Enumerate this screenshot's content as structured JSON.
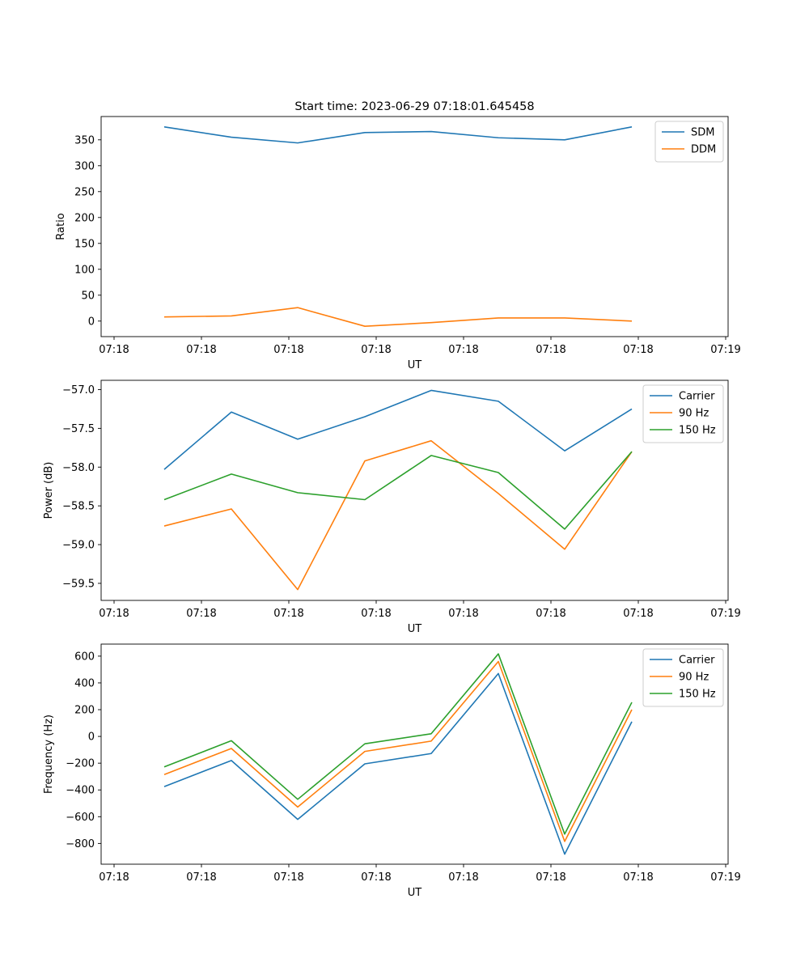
{
  "figure_title": "Start time: 2023-06-29 07:18:01.645458",
  "chart_data": [
    {
      "type": "line",
      "title": "Start time: 2023-06-29 07:18:01.645458",
      "xlabel": "UT",
      "ylabel": "Ratio",
      "x_ticks": [
        "07:18",
        "07:18",
        "07:18",
        "07:18",
        "07:18",
        "07:18",
        "07:18"
      ],
      "x_last_tick": "07:19",
      "x": [
        1,
        2,
        3,
        4,
        5,
        6,
        7,
        8
      ],
      "xlim": [
        0.2,
        9.4
      ],
      "ylim": [
        -30,
        395
      ],
      "y_ticks": [
        0,
        50,
        100,
        150,
        200,
        250,
        300,
        350
      ],
      "legend_position": "upper right",
      "series": [
        {
          "name": "SDM",
          "color": "#1f77b4",
          "values": [
            375,
            355,
            344,
            364,
            366,
            354,
            350,
            375
          ]
        },
        {
          "name": "DDM",
          "color": "#ff7f0e",
          "values": [
            8,
            10,
            26,
            -10,
            -3,
            6,
            6,
            0
          ]
        }
      ]
    },
    {
      "type": "line",
      "title": "",
      "xlabel": "UT",
      "ylabel": "Power (dB)",
      "x_ticks": [
        "07:18",
        "07:18",
        "07:18",
        "07:18",
        "07:18",
        "07:18",
        "07:18"
      ],
      "x_last_tick": "07:19",
      "x": [
        1,
        2,
        3,
        4,
        5,
        6,
        7,
        8
      ],
      "xlim": [
        0.2,
        9.4
      ],
      "ylim": [
        -59.72,
        -56.88
      ],
      "y_ticks": [
        -59.5,
        -59.0,
        -58.5,
        -58.0,
        -57.5,
        -57.0
      ],
      "legend_position": "upper right",
      "series": [
        {
          "name": "Carrier",
          "color": "#1f77b4",
          "values": [
            -58.03,
            -57.29,
            -57.64,
            -57.35,
            -57.01,
            -57.15,
            -57.79,
            -57.25
          ]
        },
        {
          "name": "90 Hz",
          "color": "#ff7f0e",
          "values": [
            -58.76,
            -58.54,
            -59.58,
            -57.92,
            -57.66,
            -58.34,
            -59.06,
            -57.8
          ]
        },
        {
          "name": "150 Hz",
          "color": "#2ca02c",
          "values": [
            -58.42,
            -58.09,
            -58.33,
            -58.42,
            -57.85,
            -58.07,
            -58.8,
            -57.8
          ]
        }
      ]
    },
    {
      "type": "line",
      "title": "",
      "xlabel": "UT",
      "ylabel": "Frequency (Hz)",
      "x_ticks": [
        "07:18",
        "07:18",
        "07:18",
        "07:18",
        "07:18",
        "07:18",
        "07:18"
      ],
      "x_last_tick": "07:19",
      "x": [
        1,
        2,
        3,
        4,
        5,
        6,
        7,
        8
      ],
      "xlim": [
        0.2,
        9.4
      ],
      "ylim": [
        -955,
        690
      ],
      "y_ticks": [
        -800,
        -600,
        -400,
        -200,
        0,
        200,
        400,
        600
      ],
      "legend_position": "upper right",
      "series": [
        {
          "name": "Carrier",
          "color": "#1f77b4",
          "values": [
            -375,
            -180,
            -620,
            -205,
            -128,
            470,
            -880,
            110
          ]
        },
        {
          "name": "90 Hz",
          "color": "#ff7f0e",
          "values": [
            -285,
            -90,
            -528,
            -112,
            -35,
            560,
            -785,
            200
          ]
        },
        {
          "name": "150 Hz",
          "color": "#2ca02c",
          "values": [
            -228,
            -32,
            -470,
            -55,
            20,
            617,
            -730,
            255
          ]
        }
      ]
    }
  ]
}
